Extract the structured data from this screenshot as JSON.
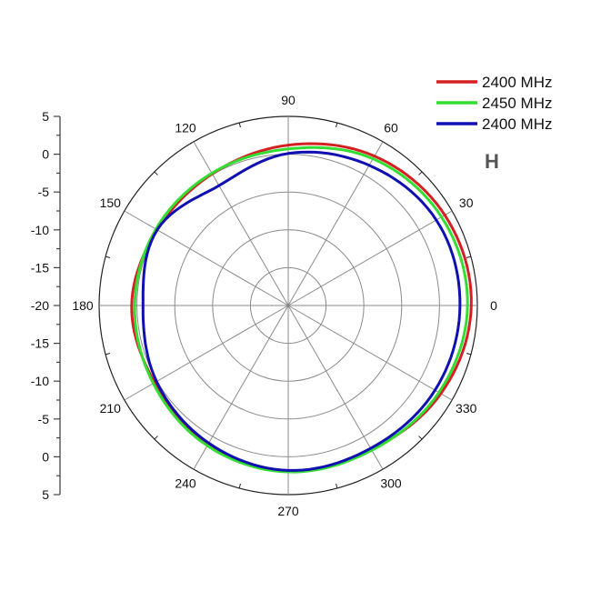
{
  "chart_data": {
    "type": "polar-line",
    "title": "",
    "plane_label": "H",
    "radial_axis": {
      "min": -20,
      "max": 5,
      "step": 5,
      "unit": "dB",
      "tick_labels_top_to_bottom": [
        "5",
        "0",
        "-5",
        "-10",
        "-15",
        "-20",
        "-15",
        "-10",
        "-5",
        "0",
        "5"
      ]
    },
    "angular_axis": {
      "step_deg": 30,
      "tick_labels": [
        "0",
        "30",
        "60",
        "90",
        "120",
        "150",
        "180",
        "210",
        "240",
        "270",
        "300",
        "330"
      ],
      "minor_tick_step_deg": 15
    },
    "grid": true,
    "legend_position": "top-right",
    "angles_deg": [
      0,
      30,
      60,
      90,
      120,
      150,
      180,
      210,
      240,
      270,
      300,
      330
    ],
    "series": [
      {
        "name": "2400 MHz",
        "color": "#d42020",
        "values": [
          4.2,
          3.9,
          2.8,
          1.2,
          0.1,
          0.0,
          0.7,
          0.4,
          1.2,
          1.9,
          2.0,
          3.3
        ]
      },
      {
        "name": "2450 MHz",
        "color": "#33dd33",
        "values": [
          3.7,
          3.4,
          2.4,
          0.7,
          0.2,
          0.2,
          0.3,
          0.6,
          1.4,
          2.0,
          2.1,
          3.0
        ]
      },
      {
        "name": "2400 MHz",
        "color": "#1010b0",
        "values": [
          2.7,
          2.6,
          1.4,
          0.1,
          -1.7,
          0.0,
          -0.8,
          0.1,
          1.0,
          1.8,
          1.8,
          2.4
        ]
      }
    ]
  },
  "legend": {
    "items": [
      {
        "label": "2400 MHz",
        "color": "#d42020"
      },
      {
        "label": "2450 MHz",
        "color": "#33dd33"
      },
      {
        "label": "2400 MHz",
        "color": "#1010b0"
      }
    ]
  }
}
